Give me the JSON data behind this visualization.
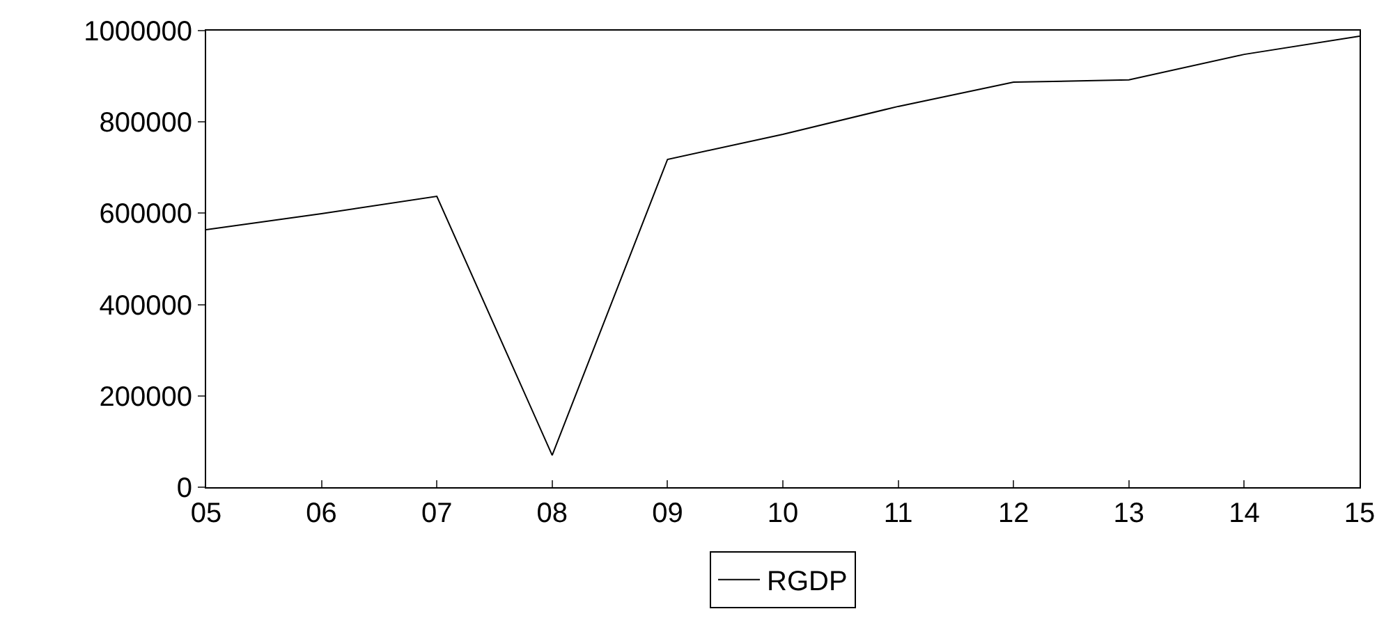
{
  "chart_data": {
    "type": "line",
    "categories": [
      "05",
      "06",
      "07",
      "08",
      "09",
      "10",
      "11",
      "12",
      "13",
      "14",
      "15"
    ],
    "series": [
      {
        "name": "RGDP",
        "color": "#000000",
        "values": [
          564000,
          599000,
          637000,
          70000,
          718000,
          773000,
          834000,
          887000,
          892000,
          948000,
          988000
        ]
      }
    ],
    "ylim": [
      0,
      1000000
    ],
    "yticks": [
      0,
      200000,
      400000,
      600000,
      800000,
      1000000
    ],
    "legend": "bottom",
    "marker": "none",
    "line_style": "solid"
  }
}
